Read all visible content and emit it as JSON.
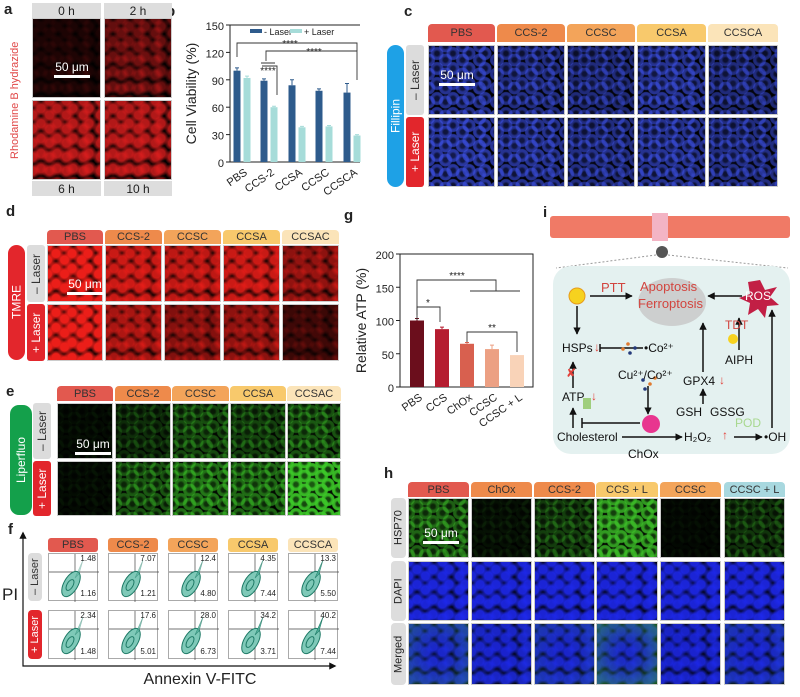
{
  "figure": {
    "panel_labels": {
      "a": "a",
      "b": "b",
      "c": "c",
      "d": "d",
      "e": "e",
      "f": "f",
      "g": "g",
      "h": "h",
      "i": "i"
    },
    "a": {
      "ylabel": "Rhodamine B hydrazide",
      "times": [
        "0 h",
        "2 h",
        "6 h",
        "10 h"
      ],
      "scale": "50 μm"
    },
    "c": {
      "stain": "Fillipin",
      "rows": [
        "– Laser",
        "+ Laser"
      ],
      "columns": [
        "PBS",
        "CCS-2",
        "CCSC",
        "CCSA",
        "CCSCA"
      ],
      "scale": "50 μm"
    },
    "d": {
      "stain": "TMRE",
      "rows": [
        "– Laser",
        "+ Laser"
      ],
      "columns": [
        "PBS",
        "CCS-2",
        "CCSC",
        "CCSA",
        "CCSAC"
      ],
      "scale": "50 μm"
    },
    "e": {
      "stain": "Liperfluo",
      "rows": [
        "– Laser",
        "+ Laser"
      ],
      "columns": [
        "PBS",
        "CCS-2",
        "CCSC",
        "CCSA",
        "CCSAC"
      ],
      "scale": "50 μm"
    },
    "f": {
      "ylabel": "PI",
      "xlabel": "Annexin V-FITC",
      "rows": [
        "– Laser",
        "+ Laser"
      ],
      "columns": [
        "PBS",
        "CCS-2",
        "CCSC",
        "CCSA",
        "CCSCA"
      ],
      "quadrants": [
        [
          [
            "1.48",
            "1.16"
          ],
          [
            "7.07",
            "1.21"
          ],
          [
            "12.4",
            "4.80"
          ],
          [
            "4.35",
            "7.44"
          ],
          [
            "13.3",
            "5.50"
          ]
        ],
        [
          [
            "2.34",
            "1.48"
          ],
          [
            "17.6",
            "5.01"
          ],
          [
            "28.0",
            "6.73"
          ],
          [
            "34.2",
            "3.71"
          ],
          [
            "40.2",
            "7.44"
          ]
        ]
      ]
    },
    "h": {
      "rows": [
        "HSP70",
        "DAPI",
        "Merged"
      ],
      "columns": [
        "PBS",
        "ChOx",
        "CCS-2",
        "CCS + L",
        "CCSC",
        "CCSC + L"
      ],
      "scale": "50 μm"
    },
    "i": {
      "ptt": "PTT",
      "apoptosis": "Apoptosis",
      "ferroptosis": "Ferroptosis",
      "ros": "ROS",
      "tdt": "TDT",
      "aiph": "AIPH",
      "hsps": "HSPs",
      "co": "•Co²⁺",
      "cuco": "Cu²⁺/Co²⁺",
      "gpx4": "GPX4",
      "atp": "ATP",
      "gsh": "GSH",
      "gssg": "GSSG",
      "cholesterol": "Cholesterol",
      "chox": "ChOx",
      "h2o2": "H₂O₂",
      "pod": "POD",
      "oh": "•OH",
      "down": "↓",
      "up": "↑",
      "x": "✘"
    }
  },
  "colors": {
    "PBS": "#e2594f",
    "CCS-2": "#ee8a4b",
    "CCSC": "#f3a45a",
    "CCSA": "#f8c96c",
    "CCSCA": "#fbe4b9",
    "CCSC + L": "#a8d8df",
    "minus_laser": "#dcdcdc",
    "plus_laser": "#e2262c",
    "fillipin": "#1ea1e6",
    "tmre": "#e3262c",
    "liperfluo": "#14a04b"
  },
  "chart_data": [
    {
      "type": "bar",
      "panel": "b",
      "title": "",
      "xlabel": "",
      "ylabel": "Cell Viability (%)",
      "ylim": [
        0,
        150
      ],
      "yticks": [
        0,
        30,
        60,
        90,
        120,
        150
      ],
      "categories": [
        "PBS",
        "CCS-2",
        "CCSA",
        "CCSC",
        "CCSCA"
      ],
      "series": [
        {
          "name": "- Laser",
          "color": "#2e5b8c",
          "values": [
            100,
            89,
            84,
            78,
            76
          ],
          "errors": [
            3,
            2,
            6,
            2,
            10
          ]
        },
        {
          "name": "+ Laser",
          "color": "#a6dcd9",
          "values": [
            92,
            60,
            38,
            39,
            29
          ],
          "errors": [
            2,
            1,
            1,
            1,
            1
          ]
        }
      ],
      "legend": "top",
      "annotations": [
        "****",
        "****",
        "****"
      ]
    },
    {
      "type": "bar",
      "panel": "g",
      "title": "",
      "xlabel": "",
      "ylabel": "Relative ATP (%)",
      "ylim": [
        0,
        200
      ],
      "yticks": [
        0,
        50,
        100,
        150,
        200
      ],
      "categories": [
        "PBS",
        "CCS",
        "ChOx",
        "CCSC",
        "CCSC + L"
      ],
      "values": [
        100,
        87,
        65,
        57,
        48
      ],
      "errors": [
        3,
        3,
        2,
        6,
        0
      ],
      "colors": [
        "#6b0e1c",
        "#b51c2f",
        "#d8604f",
        "#eca083",
        "#f9d3b8"
      ],
      "annotations": [
        "****",
        "*",
        "**"
      ]
    }
  ]
}
